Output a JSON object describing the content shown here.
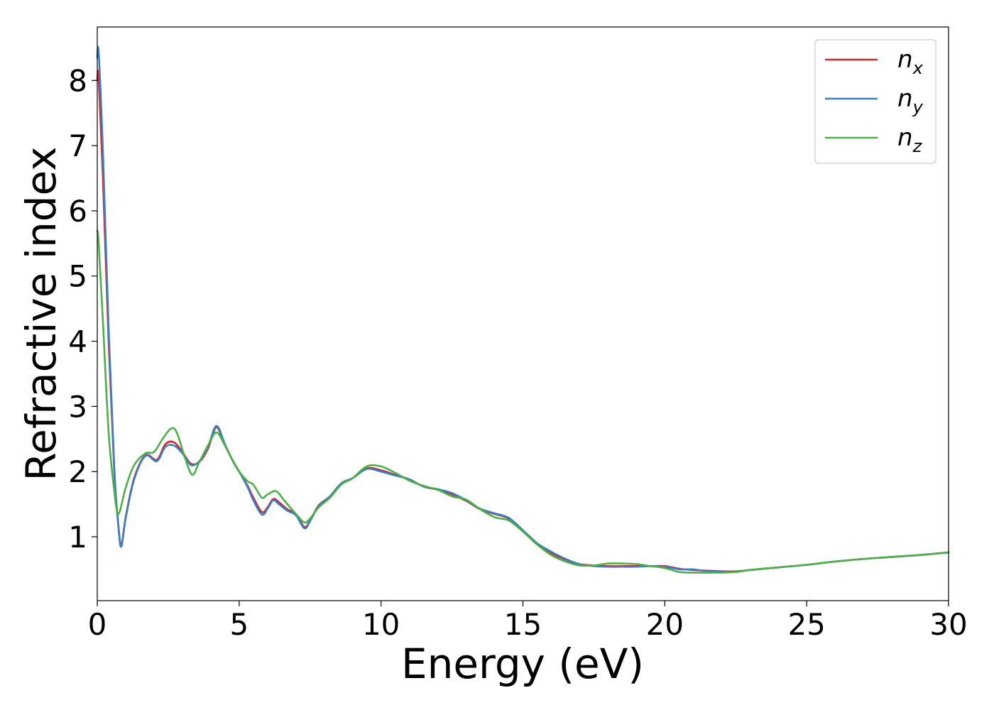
{
  "chart_data": {
    "type": "line",
    "xlabel": "Energy (eV)",
    "ylabel": "Refractive index",
    "xlim": [
      0,
      30
    ],
    "ylim": [
      0.02,
      8.82
    ],
    "xticks": [
      0,
      5,
      10,
      15,
      20,
      25,
      30
    ],
    "yticks": [
      1,
      2,
      3,
      4,
      5,
      6,
      7,
      8
    ],
    "grid": false,
    "legend_position": "top-right",
    "series": [
      {
        "name": "n_x",
        "label_main": "n",
        "label_sub": "x",
        "color": "#d62728",
        "x": [
          0,
          0.05,
          0.2,
          0.4,
          0.6,
          0.75,
          0.85,
          1.0,
          1.3,
          1.7,
          2.1,
          2.4,
          2.7,
          3.0,
          3.3,
          3.6,
          3.9,
          4.2,
          4.5,
          4.8,
          5.0,
          5.3,
          5.5,
          5.8,
          6.0,
          6.2,
          6.4,
          6.7,
          7.0,
          7.3,
          7.5,
          7.8,
          8.2,
          8.6,
          9.0,
          9.5,
          10.0,
          10.5,
          11.0,
          11.5,
          12.0,
          12.5,
          13.0,
          13.5,
          14.0,
          14.5,
          15.0,
          15.5,
          16.0,
          16.5,
          17.0,
          17.5,
          18.0,
          18.5,
          19.0,
          19.5,
          20.0,
          20.5,
          21.0,
          21.5,
          22.0,
          22.5,
          23.0,
          24.0,
          25.0,
          26.0,
          27.0,
          28.0,
          29.0,
          30.0
        ],
        "y": [
          8.0,
          8.05,
          6.5,
          4.0,
          2.0,
          1.15,
          0.87,
          1.3,
          1.9,
          2.25,
          2.18,
          2.42,
          2.45,
          2.3,
          2.12,
          2.15,
          2.35,
          2.68,
          2.4,
          2.15,
          2.0,
          1.78,
          1.6,
          1.38,
          1.45,
          1.58,
          1.53,
          1.42,
          1.35,
          1.15,
          1.25,
          1.48,
          1.62,
          1.82,
          1.9,
          2.05,
          2.02,
          1.95,
          1.88,
          1.77,
          1.72,
          1.65,
          1.55,
          1.42,
          1.35,
          1.28,
          1.1,
          0.9,
          0.75,
          0.65,
          0.58,
          0.56,
          0.55,
          0.55,
          0.55,
          0.55,
          0.55,
          0.51,
          0.49,
          0.48,
          0.47,
          0.47,
          0.49,
          0.53,
          0.57,
          0.62,
          0.66,
          0.69,
          0.72,
          0.76
        ]
      },
      {
        "name": "n_y",
        "label_main": "n",
        "label_sub": "y",
        "color": "#3a7fc0",
        "x": [
          0,
          0.05,
          0.2,
          0.4,
          0.6,
          0.75,
          0.85,
          1.0,
          1.3,
          1.7,
          2.1,
          2.4,
          2.7,
          3.0,
          3.3,
          3.6,
          3.9,
          4.2,
          4.5,
          4.8,
          5.0,
          5.3,
          5.5,
          5.8,
          6.0,
          6.2,
          6.4,
          6.7,
          7.0,
          7.3,
          7.5,
          7.8,
          8.2,
          8.6,
          9.0,
          9.5,
          10.0,
          10.5,
          11.0,
          11.5,
          12.0,
          12.5,
          13.0,
          13.5,
          14.0,
          14.5,
          15.0,
          15.5,
          16.0,
          16.5,
          17.0,
          17.5,
          18.0,
          18.5,
          19.0,
          19.5,
          20.0,
          20.5,
          21.0,
          21.5,
          22.0,
          22.5,
          23.0,
          24.0,
          25.0,
          26.0,
          27.0,
          28.0,
          29.0,
          30.0
        ],
        "y": [
          8.35,
          8.42,
          6.9,
          4.2,
          2.05,
          1.12,
          0.85,
          1.28,
          1.88,
          2.24,
          2.16,
          2.38,
          2.4,
          2.28,
          2.1,
          2.16,
          2.38,
          2.7,
          2.42,
          2.14,
          2.0,
          1.76,
          1.56,
          1.34,
          1.43,
          1.56,
          1.5,
          1.4,
          1.33,
          1.13,
          1.24,
          1.47,
          1.62,
          1.82,
          1.9,
          2.04,
          2.0,
          1.94,
          1.88,
          1.77,
          1.73,
          1.67,
          1.56,
          1.43,
          1.36,
          1.29,
          1.1,
          0.9,
          0.77,
          0.66,
          0.58,
          0.55,
          0.54,
          0.54,
          0.54,
          0.55,
          0.54,
          0.5,
          0.5,
          0.47,
          0.46,
          0.46,
          0.49,
          0.53,
          0.57,
          0.62,
          0.66,
          0.69,
          0.72,
          0.76
        ]
      },
      {
        "name": "n_z",
        "label_main": "n",
        "label_sub": "z",
        "color": "#4daf4a",
        "x": [
          0,
          0.05,
          0.2,
          0.4,
          0.6,
          0.7,
          0.8,
          1.0,
          1.3,
          1.7,
          2.0,
          2.3,
          2.6,
          2.8,
          3.1,
          3.35,
          3.6,
          3.9,
          4.2,
          4.5,
          4.8,
          5.0,
          5.3,
          5.5,
          5.8,
          6.0,
          6.3,
          6.6,
          7.0,
          7.3,
          7.5,
          7.8,
          8.2,
          8.6,
          9.0,
          9.5,
          10.0,
          10.5,
          11.0,
          11.5,
          12.0,
          12.5,
          13.0,
          13.5,
          14.0,
          14.5,
          15.0,
          15.5,
          16.0,
          16.5,
          17.0,
          17.5,
          18.0,
          18.5,
          19.0,
          19.5,
          20.0,
          20.5,
          21.0,
          21.5,
          22.0,
          22.5,
          23.0,
          24.0,
          25.0,
          26.0,
          27.0,
          28.0,
          29.0,
          30.0
        ],
        "y": [
          5.7,
          5.5,
          4.3,
          2.6,
          1.7,
          1.38,
          1.4,
          1.75,
          2.1,
          2.28,
          2.3,
          2.5,
          2.66,
          2.6,
          2.2,
          1.95,
          2.15,
          2.4,
          2.6,
          2.4,
          2.15,
          2.0,
          1.85,
          1.8,
          1.6,
          1.65,
          1.7,
          1.55,
          1.35,
          1.22,
          1.28,
          1.45,
          1.6,
          1.8,
          1.9,
          2.08,
          2.08,
          1.98,
          1.86,
          1.78,
          1.72,
          1.62,
          1.57,
          1.42,
          1.3,
          1.25,
          1.08,
          0.88,
          0.72,
          0.62,
          0.56,
          0.56,
          0.59,
          0.59,
          0.58,
          0.55,
          0.52,
          0.46,
          0.45,
          0.45,
          0.45,
          0.46,
          0.49,
          0.53,
          0.57,
          0.62,
          0.66,
          0.69,
          0.72,
          0.76
        ]
      }
    ]
  }
}
